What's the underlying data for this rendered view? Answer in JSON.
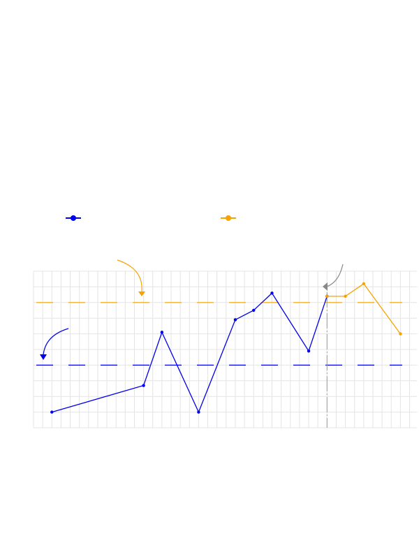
{
  "chart_data": {
    "type": "line",
    "x": [
      1,
      6,
      7,
      9,
      11,
      12,
      13,
      15,
      16,
      17,
      18,
      20
    ],
    "xlim": [
      0,
      20.9
    ],
    "ylim": [
      0,
      10
    ],
    "grid": true,
    "legend_position": "top",
    "series": [
      {
        "name": "",
        "color": "#0000ee",
        "x": [
          1,
          6,
          7,
          9,
          11,
          12,
          13,
          15,
          16
        ],
        "values": [
          1.0,
          2.7,
          6.1,
          1.0,
          6.9,
          7.5,
          8.6,
          4.9,
          8.4
        ]
      },
      {
        "name": "",
        "color": "#f5a300",
        "x": [
          16,
          17,
          18,
          20
        ],
        "values": [
          8.4,
          8.4,
          9.2,
          6.0
        ]
      }
    ],
    "reference_lines": [
      {
        "y": 8.0,
        "color": "#f5a300",
        "style": "dashed"
      },
      {
        "y": 4.0,
        "color": "#0000ee",
        "style": "dashed"
      }
    ],
    "divider_x": 16,
    "annotation_arrows": [
      {
        "color": "#f5a300",
        "icon": "curved-arrow-down-icon"
      },
      {
        "color": "#0000ee",
        "icon": "curved-arrow-down-left-icon"
      },
      {
        "color": "#888888",
        "icon": "curved-arrow-left-icon"
      }
    ]
  }
}
